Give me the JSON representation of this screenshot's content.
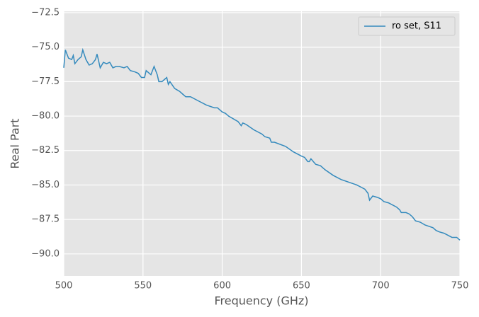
{
  "chart_data": {
    "type": "line",
    "xlabel": "Frequency (GHz)",
    "ylabel": "Real Part",
    "xlim": [
      500,
      750
    ],
    "ylim": [
      -91.6,
      -72.4
    ],
    "xticks": [
      500,
      550,
      600,
      650,
      700,
      750
    ],
    "yticks": [
      {
        "value": -90,
        "label": "−90.0"
      },
      {
        "value": -87.5,
        "label": "−87.5"
      },
      {
        "value": -85,
        "label": "−85.0"
      },
      {
        "value": -82.5,
        "label": "−82.5"
      },
      {
        "value": -80,
        "label": "−80.0"
      },
      {
        "value": -77.5,
        "label": "−77.5"
      },
      {
        "value": -75,
        "label": "−75.0"
      },
      {
        "value": -72.5,
        "label": "−72.5"
      }
    ],
    "grid": true,
    "legend": "upper right",
    "x": [
      500,
      501,
      503,
      505,
      506,
      507,
      509,
      511,
      512,
      514,
      516,
      518,
      520,
      521,
      523,
      525,
      527,
      529,
      531,
      533,
      535,
      538,
      540,
      542,
      545,
      547,
      549,
      551,
      552,
      555,
      557,
      559,
      560,
      562,
      565,
      566,
      567,
      570,
      573,
      575,
      577,
      580,
      585,
      590,
      595,
      597,
      600,
      602,
      604,
      610,
      612,
      613,
      615,
      620,
      625,
      627,
      630,
      631,
      633,
      640,
      645,
      650,
      652,
      654,
      655,
      656,
      659,
      662,
      665,
      670,
      675,
      680,
      685,
      690,
      692,
      693,
      695,
      698,
      700,
      702,
      705,
      710,
      712,
      713,
      716,
      718,
      720,
      722,
      725,
      728,
      733,
      735,
      737,
      740,
      745,
      748,
      750
    ],
    "series": [
      {
        "name": "ro set, S11",
        "color": "#348abd",
        "values": [
          -76.5,
          -75.2,
          -75.8,
          -75.9,
          -75.6,
          -76.2,
          -75.9,
          -75.7,
          -75.2,
          -75.9,
          -76.3,
          -76.2,
          -75.9,
          -75.5,
          -76.5,
          -76.1,
          -76.2,
          -76.1,
          -76.5,
          -76.4,
          -76.4,
          -76.5,
          -76.4,
          -76.7,
          -76.8,
          -76.9,
          -77.2,
          -77.2,
          -76.7,
          -77.0,
          -76.4,
          -77.0,
          -77.5,
          -77.5,
          -77.2,
          -77.7,
          -77.5,
          -78.0,
          -78.2,
          -78.4,
          -78.6,
          -78.6,
          -78.9,
          -79.2,
          -79.4,
          -79.4,
          -79.7,
          -79.8,
          -80.0,
          -80.4,
          -80.7,
          -80.5,
          -80.6,
          -81.0,
          -81.3,
          -81.5,
          -81.6,
          -81.9,
          -81.9,
          -82.2,
          -82.6,
          -82.9,
          -83.0,
          -83.3,
          -83.3,
          -83.1,
          -83.5,
          -83.6,
          -83.9,
          -84.3,
          -84.6,
          -84.8,
          -85.0,
          -85.3,
          -85.6,
          -86.1,
          -85.8,
          -85.9,
          -86.0,
          -86.2,
          -86.3,
          -86.6,
          -86.8,
          -87.0,
          -87.0,
          -87.1,
          -87.3,
          -87.6,
          -87.7,
          -87.9,
          -88.1,
          -88.3,
          -88.4,
          -88.5,
          -88.8,
          -88.8,
          -89.0
        ]
      }
    ]
  }
}
